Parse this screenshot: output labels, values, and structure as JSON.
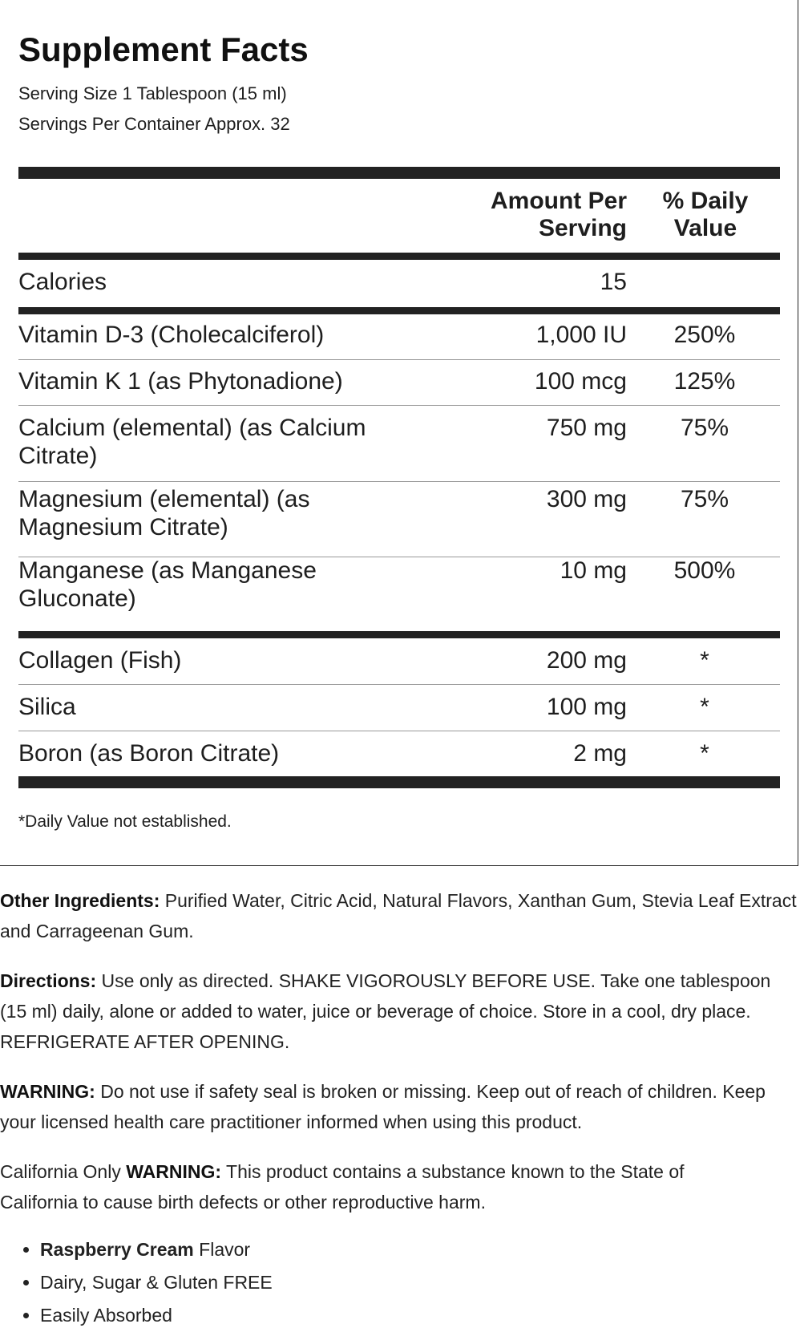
{
  "title": "Supplement Facts",
  "serving_size": "Serving Size 1 Tablespoon (15 ml)",
  "servings_per_container": "Servings Per Container Approx. 32",
  "header": {
    "amount_line1": "Amount Per",
    "amount_line2": "Serving",
    "dv_line1": "% Daily",
    "dv_line2": "Value"
  },
  "calories": {
    "label": "Calories",
    "amount": "15"
  },
  "rows": [
    {
      "name1": "Vitamin D-3 (Cholecalciferol)",
      "name2": "",
      "amount": "1,000 IU",
      "dv": "250%"
    },
    {
      "name1": "Vitamin K 1 (as Phytonadione)",
      "name2": "",
      "amount": "100 mcg",
      "dv": "125%"
    },
    {
      "name1": "Calcium (elemental) (as Calcium",
      "name2": "Citrate)",
      "amount": "750 mg",
      "dv": "75%"
    },
    {
      "name1": "Magnesium (elemental) (as",
      "name2": "Magnesium Citrate)",
      "amount": "300 mg",
      "dv": "75%"
    },
    {
      "name1": "Manganese (as Manganese",
      "name2": "Gluconate)",
      "amount": "10 mg",
      "dv": "500%"
    },
    {
      "name1": "Collagen (Fish)",
      "name2": "",
      "amount": "200 mg",
      "dv": "*"
    },
    {
      "name1": "Silica",
      "name2": "",
      "amount": "100 mg",
      "dv": "*"
    },
    {
      "name1": "Boron (as Boron Citrate)",
      "name2": "",
      "amount": "2 mg",
      "dv": "*"
    }
  ],
  "footnote": "*Daily Value not established.",
  "other_ingredients": {
    "label": "Other Ingredients:",
    "text": " Purified Water, Citric Acid, Natural Flavors, Xanthan Gum, Stevia Leaf Extract and Carrageenan Gum."
  },
  "directions": {
    "label": "Directions:",
    "text": " Use only as directed. SHAKE VIGOROUSLY BEFORE USE. Take one tablespoon (15 ml) daily, alone or added to water, juice or beverage of choice. Store in a cool, dry place. REFRIGERATE AFTER OPENING."
  },
  "warning": {
    "label": "WARNING:",
    "text": " Do not use if safety seal is broken or missing. Keep out of reach of children. Keep your licensed health care practitioner informed when using this product."
  },
  "california": {
    "prefix": "California Only ",
    "label": "WARNING:",
    "text": " This product contains a substance known to the State of California to cause birth defects or other reproductive harm."
  },
  "bullets": [
    {
      "bold": "Raspberry Cream",
      "text": " Flavor"
    },
    {
      "bold": "",
      "text": "Dairy, Sugar & Gluten FREE"
    },
    {
      "bold": "",
      "text": "Easily Absorbed"
    }
  ]
}
